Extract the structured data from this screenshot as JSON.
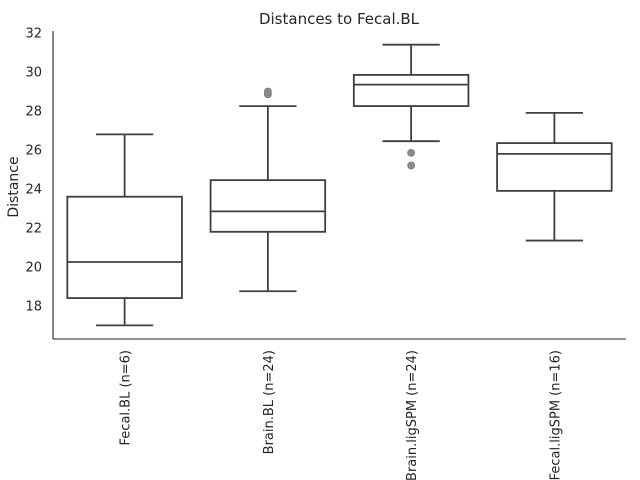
{
  "chart_data": {
    "type": "box",
    "title": "Distances to Fecal.BL",
    "xlabel": "",
    "ylabel": "Distance",
    "ylim": [
      16.3,
      32.0
    ],
    "yticks": [
      18,
      20,
      22,
      24,
      26,
      28,
      30,
      32
    ],
    "grid": false,
    "categories": [
      "Fecal.BL (n=6)",
      "Brain.BL (n=24)",
      "Brain.ligSPM (n=24)",
      "Fecal.ligSPM (n=16)"
    ],
    "boxes": [
      {
        "category": "Fecal.BL (n=6)",
        "whisker_low": 17.0,
        "q1": 18.4,
        "median": 20.25,
        "q3": 23.6,
        "whisker_high": 26.8,
        "outliers": []
      },
      {
        "category": "Brain.BL (n=24)",
        "whisker_low": 18.75,
        "q1": 21.8,
        "median": 22.85,
        "q3": 24.45,
        "whisker_high": 28.25,
        "outliers": [
          28.85,
          29.0
        ]
      },
      {
        "category": "Brain.ligSPM (n=24)",
        "whisker_low": 26.45,
        "q1": 28.25,
        "median": 29.35,
        "q3": 29.85,
        "whisker_high": 31.4,
        "outliers": [
          25.85,
          25.2
        ]
      },
      {
        "category": "Fecal.ligSPM (n=16)",
        "whisker_low": 21.35,
        "q1": 23.9,
        "median": 25.8,
        "q3": 26.35,
        "whisker_high": 27.9,
        "outliers": []
      }
    ],
    "colors": {
      "line": "#3f3f3f",
      "outlier": "#8a8a8a",
      "axis": "#262626"
    }
  }
}
